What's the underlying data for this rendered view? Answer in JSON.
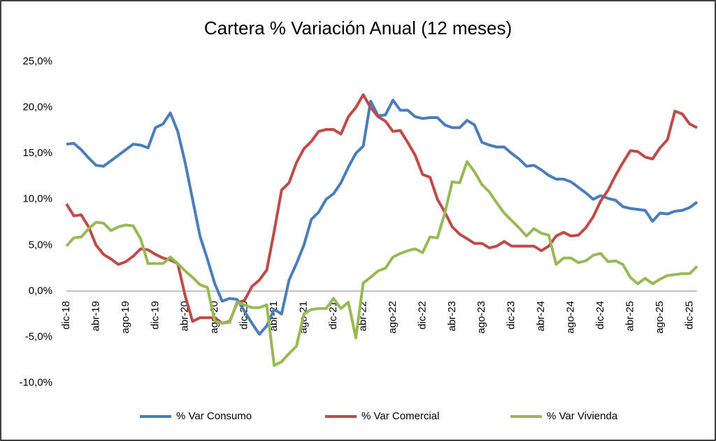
{
  "chart_data": {
    "type": "line",
    "title": "Cartera % Variación Anual (12 meses)",
    "categories": [
      "dic-18",
      null,
      null,
      null,
      "abr-19",
      null,
      null,
      null,
      "ago-19",
      null,
      null,
      null,
      "dic-19",
      null,
      null,
      null,
      "abr-20",
      null,
      null,
      null,
      "ago-20",
      null,
      null,
      null,
      "dic-20",
      null,
      null,
      null,
      "abr-21",
      null,
      null,
      null,
      "ago-21",
      null,
      null,
      null,
      "dic-21",
      null,
      null,
      null,
      "abr-22",
      null,
      null,
      null,
      "ago-22",
      null,
      null,
      null,
      "dic-22",
      null,
      null,
      null,
      "abr-23",
      null,
      null,
      null,
      "ago-23",
      null,
      null,
      null,
      "dic-23",
      null,
      null,
      null,
      "abr-24",
      null,
      null,
      null,
      "ago-24",
      null,
      null,
      null,
      "dic-24",
      null,
      null,
      null,
      "abr-25",
      null,
      null,
      null,
      "ago-25",
      null,
      null,
      null,
      "dic-25",
      null
    ],
    "series": [
      {
        "name": "% Var Consumo",
        "color": "#4a7ebb",
        "values": [
          16.0,
          16.1,
          15.4,
          14.5,
          13.7,
          13.6,
          14.2,
          14.8,
          15.4,
          16.0,
          15.9,
          15.6,
          17.8,
          18.2,
          19.4,
          17.4,
          14.0,
          10.0,
          6.0,
          3.5,
          0.8,
          -1.1,
          -0.8,
          -0.9,
          -2.2,
          -3.5,
          -4.7,
          -3.8,
          -2.0,
          -2.5,
          1.2,
          3.0,
          5.0,
          7.8,
          8.6,
          10.0,
          10.6,
          11.8,
          13.5,
          15.0,
          15.8,
          20.7,
          19.1,
          19.2,
          20.8,
          19.7,
          19.7,
          19.0,
          18.8,
          18.9,
          18.9,
          18.1,
          17.8,
          17.8,
          18.6,
          18.1,
          16.2,
          15.9,
          15.7,
          15.7,
          15.0,
          14.4,
          13.6,
          13.7,
          13.2,
          12.6,
          12.2,
          12.2,
          11.9,
          11.3,
          10.7,
          10.0,
          10.4,
          10.1,
          9.9,
          9.2,
          9.0,
          8.9,
          8.8,
          7.6,
          8.5,
          8.4,
          8.7,
          8.8,
          9.1,
          9.7
        ]
      },
      {
        "name": "% Var Comercial",
        "color": "#be4b48",
        "values": [
          9.5,
          8.2,
          8.3,
          7.0,
          5.0,
          4.0,
          3.5,
          2.9,
          3.2,
          3.8,
          4.6,
          4.5,
          4.0,
          3.6,
          3.4,
          3.0,
          -0.5,
          -3.3,
          -2.9,
          -2.9,
          -2.9,
          -3.5,
          -3.3,
          -1.3,
          -1.0,
          0.5,
          1.2,
          2.3,
          6.5,
          11.0,
          11.8,
          14.0,
          15.5,
          16.3,
          17.4,
          17.6,
          17.6,
          17.1,
          19.0,
          20.0,
          21.4,
          20.0,
          19.0,
          18.5,
          17.4,
          17.5,
          16.2,
          14.8,
          12.7,
          12.4,
          10.0,
          8.6,
          7.0,
          6.2,
          5.7,
          5.2,
          5.2,
          4.7,
          4.9,
          5.4,
          4.9,
          4.9,
          4.9,
          4.9,
          4.4,
          4.9,
          6.0,
          6.4,
          6.0,
          6.1,
          6.9,
          8.1,
          9.8,
          11.0,
          12.6,
          14.0,
          15.3,
          15.2,
          14.6,
          14.4,
          15.6,
          16.5,
          19.6,
          19.3,
          18.2,
          17.8
        ]
      },
      {
        "name": "% Var Vivienda",
        "color": "#98b954",
        "values": [
          4.9,
          5.8,
          5.9,
          6.8,
          7.5,
          7.4,
          6.6,
          7.0,
          7.2,
          7.1,
          5.7,
          3.0,
          3.0,
          3.0,
          3.7,
          3.0,
          2.2,
          1.5,
          0.7,
          0.4,
          -3.3,
          -3.5,
          -3.4,
          -1.2,
          -1.5,
          -1.8,
          -1.8,
          -1.5,
          -8.1,
          -7.7,
          -6.8,
          -6.0,
          -2.5,
          -2.0,
          -1.9,
          -1.9,
          -0.8,
          -1.9,
          -1.2,
          -5.1,
          0.9,
          1.5,
          2.2,
          2.5,
          3.7,
          4.1,
          4.4,
          4.6,
          4.2,
          5.9,
          5.8,
          8.5,
          11.9,
          11.8,
          14.1,
          13.0,
          11.6,
          10.8,
          9.6,
          8.5,
          7.7,
          6.9,
          6.0,
          6.8,
          6.3,
          6.1,
          2.9,
          3.6,
          3.6,
          3.1,
          3.3,
          3.9,
          4.1,
          3.2,
          3.3,
          2.9,
          1.5,
          0.8,
          1.4,
          0.8,
          1.3,
          1.7,
          1.8,
          1.9,
          1.9,
          2.7
        ]
      }
    ],
    "ylim": [
      -10,
      25
    ],
    "yticks": [
      {
        "value": -10,
        "label": "-10,0%"
      },
      {
        "value": -5,
        "label": "-5,0%"
      },
      {
        "value": 0,
        "label": "0,0%"
      },
      {
        "value": 5,
        "label": "5,0%"
      },
      {
        "value": 10,
        "label": "10,0%"
      },
      {
        "value": 15,
        "label": "15,0%"
      },
      {
        "value": 20,
        "label": "20,0%"
      },
      {
        "value": 25,
        "label": "25,0%"
      }
    ],
    "legend": "bottom"
  }
}
